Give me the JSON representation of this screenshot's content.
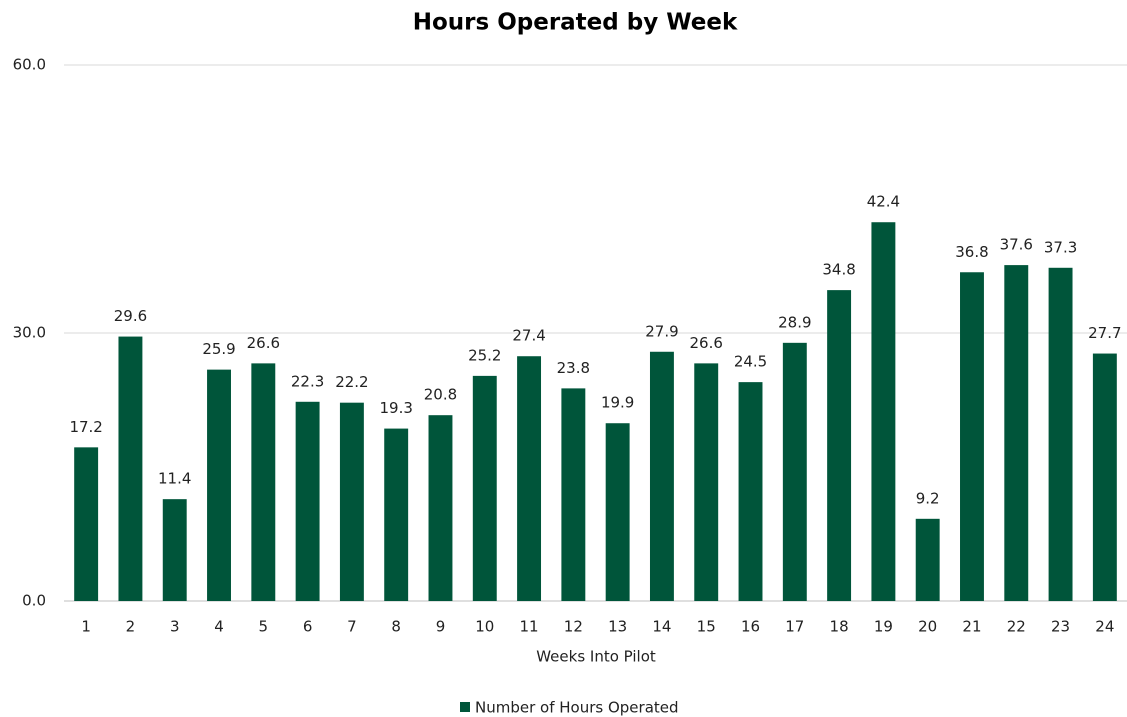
{
  "chart_data": {
    "type": "bar",
    "title": "Hours Operated by Week",
    "x_label": "Weeks Into Pilot",
    "categories": [
      "1",
      "2",
      "3",
      "4",
      "5",
      "6",
      "7",
      "8",
      "9",
      "10",
      "11",
      "12",
      "13",
      "14",
      "15",
      "16",
      "17",
      "18",
      "19",
      "20",
      "21",
      "22",
      "23",
      "24"
    ],
    "series": [
      {
        "name": "Number of Hours Operated",
        "color": "#00553a",
        "values": [
          17.2,
          29.6,
          11.4,
          25.9,
          26.6,
          22.3,
          22.2,
          19.3,
          20.8,
          25.2,
          27.4,
          23.8,
          19.9,
          27.9,
          26.6,
          24.5,
          28.9,
          34.8,
          42.4,
          9.2,
          36.8,
          37.6,
          37.3,
          27.7
        ]
      }
    ],
    "ylim": [
      0,
      60
    ],
    "yticks": [
      {
        "value": 0,
        "label": "0.0"
      },
      {
        "value": 30,
        "label": "30.0"
      },
      {
        "value": 60,
        "label": "60.0"
      }
    ],
    "grid": true,
    "legend": "bottom"
  }
}
